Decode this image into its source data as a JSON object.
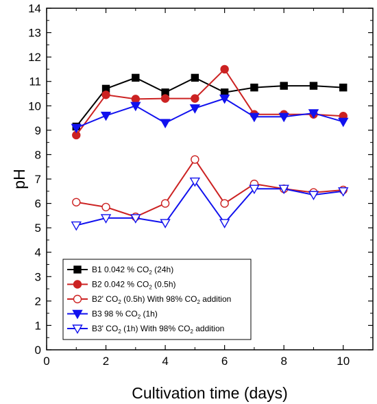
{
  "chart_data": {
    "type": "line",
    "title": "",
    "xlabel": "Cultivation time (days)",
    "ylabel": "pH",
    "xlim": [
      0,
      11
    ],
    "ylim": [
      0,
      14
    ],
    "x_ticks": [
      0,
      2,
      4,
      6,
      8,
      10
    ],
    "y_ticks": [
      0,
      1,
      2,
      3,
      4,
      5,
      6,
      7,
      8,
      9,
      10,
      11,
      12,
      13,
      14
    ],
    "grid": false,
    "legend_position": "bottom-left",
    "x": [
      1,
      2,
      3,
      4,
      5,
      6,
      7,
      8,
      9,
      10
    ],
    "series": [
      {
        "name": "B1 0.042 % CO2 (24h)",
        "legend": {
          "pre": "B1 0.042 % CO",
          "sub": "2",
          "post": " (24h)"
        },
        "color": "#000000",
        "marker": "square",
        "filled": true,
        "values": [
          9.15,
          10.7,
          11.15,
          10.55,
          11.15,
          10.55,
          10.75,
          10.82,
          10.82,
          10.75
        ]
      },
      {
        "name": "B2 0.042 % CO2 (0.5h)",
        "legend": {
          "pre": "B2 0.042 % CO",
          "sub": "2",
          "post": " (0.5h)"
        },
        "color": "#cc2222",
        "marker": "circle",
        "filled": true,
        "values": [
          8.8,
          10.45,
          10.28,
          10.3,
          10.3,
          11.5,
          9.65,
          9.65,
          9.65,
          9.58
        ]
      },
      {
        "name": "B2' CO2 (0.5h) With 98% CO2 addition",
        "legend": {
          "pre": "B2'  CO",
          "sub": "2",
          "mid": " (0.5h) With 98% CO",
          "sub2": "2",
          "post": " addition"
        },
        "color": "#cc2222",
        "marker": "circle",
        "filled": false,
        "values": [
          6.05,
          5.85,
          5.45,
          6.0,
          7.8,
          6.0,
          6.8,
          6.6,
          6.45,
          6.55
        ]
      },
      {
        "name": "B3 98 % CO2 (1h)",
        "legend": {
          "pre": "B3 98 % CO",
          "sub": "2",
          "post": " (1h)"
        },
        "color": "#1111ee",
        "marker": "triangle-down",
        "filled": true,
        "values": [
          9.1,
          9.6,
          10.0,
          9.3,
          9.9,
          10.3,
          9.55,
          9.55,
          9.7,
          9.35
        ]
      },
      {
        "name": "B3' CO2 (1h) With 98% CO2 addition",
        "legend": {
          "pre": "B3'  CO",
          "sub": "2",
          "mid": " (1h)  With 98% CO",
          "sub2": "2",
          "post": " addition"
        },
        "color": "#1111ee",
        "marker": "triangle-down",
        "filled": false,
        "values": [
          5.1,
          5.4,
          5.4,
          5.2,
          6.9,
          5.2,
          6.6,
          6.6,
          6.35,
          6.5
        ]
      }
    ]
  }
}
